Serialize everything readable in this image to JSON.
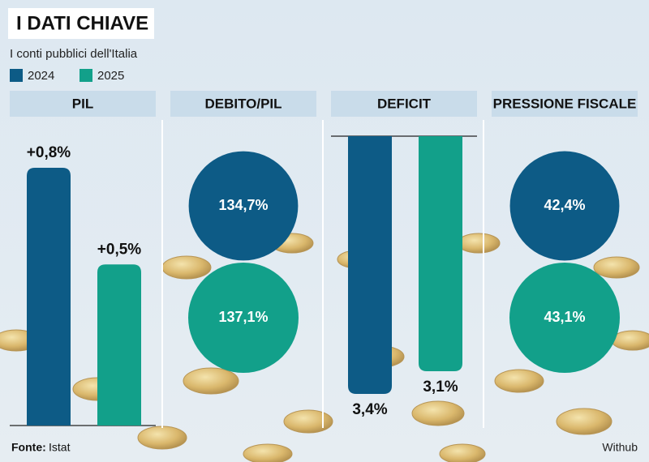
{
  "title": "I DATI CHIAVE",
  "subtitle": "I conti pubblici dell'Italia",
  "legend": [
    {
      "name": "2024",
      "color": "#0d5b86"
    },
    {
      "name": "2025",
      "color": "#12a08a"
    }
  ],
  "chart_data": [
    {
      "type": "bar",
      "title": "PIL",
      "direction": "up",
      "values": [
        0.8,
        0.5
      ],
      "value_labels": [
        "+0,8%",
        "+0,5%"
      ]
    },
    {
      "type": "circle",
      "title": "DEBITO/PIL",
      "values": [
        134.7,
        137.1
      ],
      "value_labels": [
        "134,7%",
        "137,1%"
      ]
    },
    {
      "type": "bar",
      "title": "DEFICIT",
      "direction": "down",
      "values": [
        3.4,
        3.1
      ],
      "value_labels": [
        "3,4%",
        "3,1%"
      ]
    },
    {
      "type": "circle",
      "title": "PRESSIONE FISCALE",
      "values": [
        42.4,
        43.1
      ],
      "value_labels": [
        "42,4%",
        "43,1%"
      ]
    }
  ],
  "footer": {
    "source_label": "Fonte:",
    "source": "Istat",
    "credit": "Withub"
  }
}
